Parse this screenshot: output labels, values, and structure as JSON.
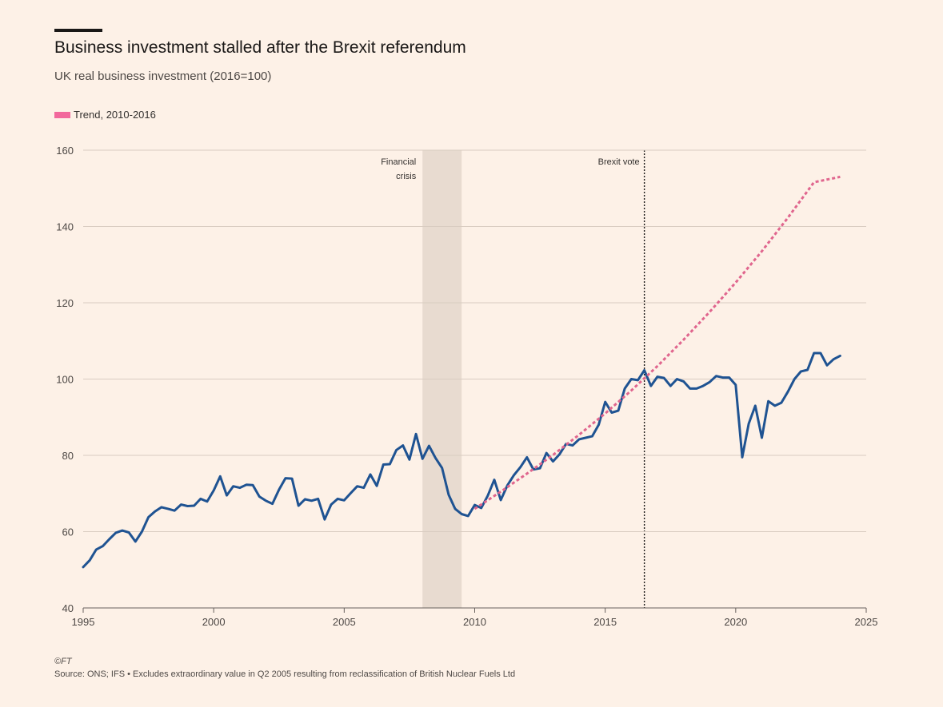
{
  "title": "Business investment stalled after the Brexit referendum",
  "subtitle": "UK real business investment (2016=100)",
  "legend": {
    "label": "Trend, 2010-2016",
    "color": "#f2689c"
  },
  "footer": {
    "copyright": "©FT",
    "source": "Source: ONS; IFS • Excludes extraordinary value in Q2 2005 resulting from reclassification of British Nuclear Fuels Ltd"
  },
  "colors": {
    "series": "#1f5392",
    "trend": "#e0668e",
    "shade": "#e8dbd0",
    "grid": "#d9ccc1",
    "axis": "#66605c"
  },
  "chart_data": {
    "type": "line",
    "xlim": [
      1995,
      2025
    ],
    "ylim": [
      40,
      160
    ],
    "xticks": [
      1995,
      2000,
      2005,
      2010,
      2015,
      2020,
      2025
    ],
    "yticks": [
      40,
      60,
      80,
      100,
      120,
      140,
      160
    ],
    "grid": true,
    "legend_position": "top-left",
    "annotations": [
      {
        "type": "band",
        "x0": 2008.0,
        "x1": 2009.5,
        "label": [
          "Financial",
          "crisis"
        ]
      },
      {
        "type": "vline",
        "x": 2016.5,
        "label": [
          "Brexit vote"
        ]
      }
    ],
    "series": [
      {
        "name": "",
        "x": [
          1995.0,
          1995.25,
          1995.5,
          1995.75,
          1996.0,
          1996.25,
          1996.5,
          1996.75,
          1997.0,
          1997.25,
          1997.5,
          1997.75,
          1998.0,
          1998.25,
          1998.5,
          1998.75,
          1999.0,
          1999.25,
          1999.5,
          1999.75,
          2000.0,
          2000.25,
          2000.5,
          2000.75,
          2001.0,
          2001.25,
          2001.5,
          2001.75,
          2002.0,
          2002.25,
          2002.5,
          2002.75,
          2003.0,
          2003.25,
          2003.5,
          2003.75,
          2004.0,
          2004.25,
          2004.5,
          2004.75,
          2005.0,
          2005.25,
          2005.5,
          2005.75,
          2006.0,
          2006.25,
          2006.5,
          2006.75,
          2007.0,
          2007.25,
          2007.5,
          2007.75,
          2008.0,
          2008.25,
          2008.5,
          2008.75,
          2009.0,
          2009.25,
          2009.5,
          2009.75,
          2010.0,
          2010.25,
          2010.5,
          2010.75,
          2011.0,
          2011.25,
          2011.5,
          2011.75,
          2012.0,
          2012.25,
          2012.5,
          2012.75,
          2013.0,
          2013.25,
          2013.5,
          2013.75,
          2014.0,
          2014.25,
          2014.5,
          2014.75,
          2015.0,
          2015.25,
          2015.5,
          2015.75,
          2016.0,
          2016.25,
          2016.5,
          2016.75,
          2017.0,
          2017.25,
          2017.5,
          2017.75,
          2018.0,
          2018.25,
          2018.5,
          2018.75,
          2019.0,
          2019.25,
          2019.5,
          2019.75,
          2020.0,
          2020.25,
          2020.5,
          2020.75,
          2021.0,
          2021.25,
          2021.5,
          2021.75,
          2022.0,
          2022.25,
          2022.5,
          2022.75,
          2023.0,
          2023.25,
          2023.5,
          2023.75,
          2024.0
        ],
        "values": [
          50.7,
          52.5,
          55.3,
          56.2,
          58.0,
          59.7,
          60.3,
          59.8,
          57.4,
          60.0,
          63.8,
          65.3,
          66.4,
          66.0,
          65.5,
          67.1,
          66.7,
          66.8,
          68.6,
          67.9,
          70.8,
          74.5,
          69.5,
          71.9,
          71.5,
          72.3,
          72.2,
          69.2,
          68.1,
          67.3,
          71.0,
          74.0,
          73.9,
          66.8,
          68.5,
          68.1,
          68.6,
          63.2,
          67.1,
          68.6,
          68.2,
          70.1,
          71.9,
          71.5,
          75.0,
          72.0,
          77.6,
          77.7,
          81.4,
          82.6,
          78.9,
          85.6,
          79.1,
          82.5,
          79.3,
          76.7,
          69.7,
          66.0,
          64.6,
          64.1,
          67.0,
          66.2,
          69.4,
          73.6,
          68.3,
          72.1,
          74.8,
          76.9,
          79.5,
          76.3,
          76.6,
          80.6,
          78.4,
          80.3,
          83.0,
          82.6,
          84.2,
          84.6,
          85.0,
          88.0,
          94.0,
          91.2,
          91.7,
          97.5,
          100.0,
          99.7,
          102.3,
          98.2,
          100.6,
          100.3,
          98.2,
          100.0,
          99.4,
          97.5,
          97.5,
          98.2,
          99.2,
          100.8,
          100.4,
          100.4,
          98.5,
          79.5,
          88.3,
          93.0,
          84.6,
          94.2,
          93.0,
          93.8,
          96.7,
          100.0,
          102.0,
          102.4,
          106.8,
          106.8,
          103.6,
          105.2,
          106.1
        ]
      },
      {
        "name": "Trend, 2010-2016",
        "x": [
          2010.0,
          2011.0,
          2012.0,
          2013.0,
          2014.0,
          2015.0,
          2016.0,
          2017.0,
          2018.0,
          2019.0,
          2020.0,
          2021.0,
          2022.0,
          2023.0,
          2024.0
        ],
        "values": [
          66.0,
          70.5,
          75.2,
          80.1,
          85.4,
          91.0,
          97.0,
          103.4,
          110.3,
          117.6,
          125.3,
          133.5,
          142.3,
          151.6,
          153.0
        ]
      }
    ]
  }
}
